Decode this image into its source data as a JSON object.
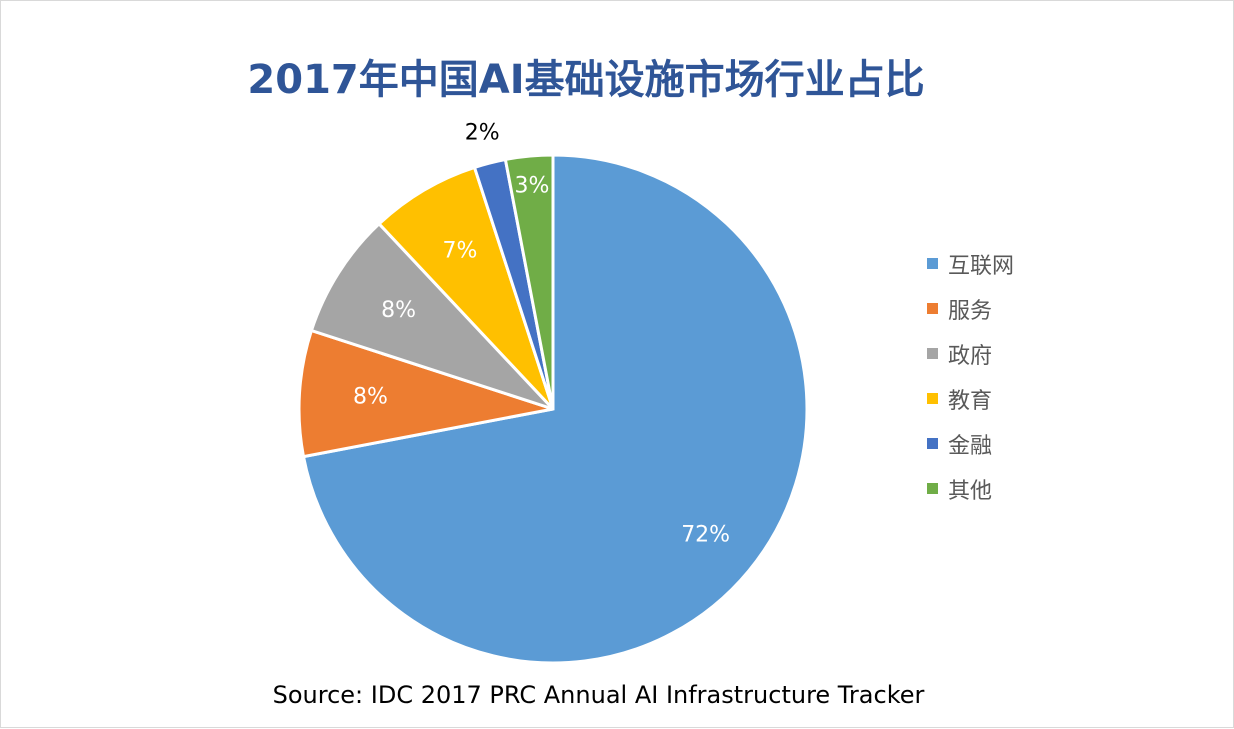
{
  "chart_data": {
    "type": "pie",
    "title": "2017年中国AI基础设施市场行业占比",
    "categories": [
      "互联网",
      "服务",
      "政府",
      "教育",
      "金融",
      "其他"
    ],
    "values": [
      72,
      8,
      8,
      7,
      2,
      3
    ],
    "data_labels": [
      "72%",
      "8%",
      "8%",
      "7%",
      "2%",
      "3%"
    ],
    "colors": [
      "#5b9bd5",
      "#ed7d31",
      "#a5a5a5",
      "#ffc000",
      "#4472c4",
      "#70ad47"
    ],
    "label_colors": [
      "#ffffff",
      "#ffffff",
      "#ffffff",
      "#ffffff",
      "#000000",
      "#ffffff"
    ],
    "legend_position": "right",
    "source": "Source: IDC 2017 PRC Annual AI Infrastructure Tracker"
  }
}
